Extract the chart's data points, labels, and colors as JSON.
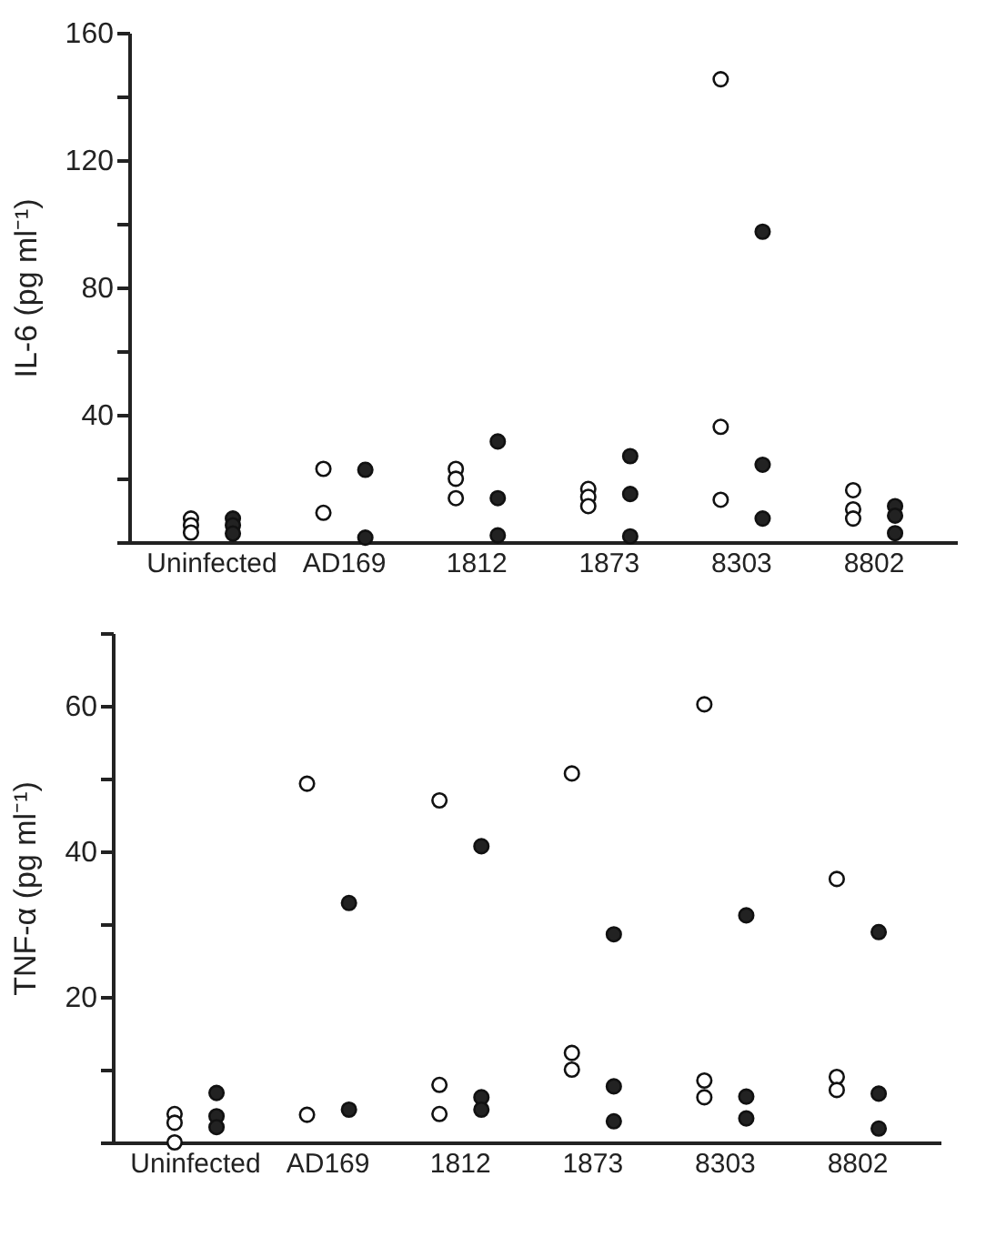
{
  "chart_data": [
    {
      "type": "scatter",
      "ylabel": "IL-6 (pg ml⁻¹)",
      "categories": [
        "Uninfected",
        "AD169",
        "1812",
        "1873",
        "8303",
        "8802"
      ],
      "ylim": [
        0,
        160
      ],
      "yticks": [
        {
          "value": 0,
          "label": null
        },
        {
          "value": 20,
          "label": null
        },
        40,
        {
          "value": 60,
          "label": null
        },
        80,
        {
          "value": 100,
          "label": null
        },
        120,
        {
          "value": 140,
          "label": null
        },
        160
      ],
      "grid": false,
      "legend": false,
      "marker": "circle",
      "series": [
        {
          "color": "#ffffff",
          "values": [
            7.4,
            23,
            23,
            16.7,
            145.4,
            16.3
          ]
        },
        {
          "color": "#ffffff",
          "values": [
            5.3,
            9.2,
            19.9,
            14.2,
            36.2,
            10.3
          ]
        },
        {
          "color": "#ffffff",
          "values": [
            3,
            null,
            13.8,
            11.3,
            13.3,
            7.4
          ]
        },
        {
          "color": "#222222",
          "values": [
            7.4,
            22.7,
            31.6,
            27,
            97.5,
            11.3
          ]
        },
        {
          "color": "#222222",
          "values": [
            5.3,
            1.4,
            13.8,
            15.1,
            24.3,
            8.3
          ]
        },
        {
          "color": "#222222",
          "values": [
            2.7,
            null,
            2.1,
            1.8,
            7.4,
            2.8
          ]
        }
      ]
    },
    {
      "type": "scatter",
      "ylabel": "TNF-α (pg ml⁻¹)",
      "categories": [
        "Uninfected",
        "AD169",
        "1812",
        "1873",
        "8303",
        "8802"
      ],
      "ylim": [
        0,
        70
      ],
      "yticks": [
        {
          "value": 0,
          "label": null
        },
        {
          "value": 10,
          "label": null
        },
        20,
        {
          "value": 30,
          "label": null
        },
        40,
        {
          "value": 50,
          "label": null
        },
        60,
        {
          "value": 70,
          "label": null
        }
      ],
      "grid": false,
      "legend": false,
      "marker": "circle",
      "series": [
        {
          "color": "#ffffff",
          "values": [
            3.9,
            49.3,
            47,
            50.7,
            60.2,
            36.2
          ]
        },
        {
          "color": "#ffffff",
          "values": [
            2.7,
            3.8,
            7.9,
            12.3,
            8.5,
            9
          ]
        },
        {
          "color": "#ffffff",
          "values": [
            0,
            null,
            3.9,
            10,
            6.2,
            7.2
          ]
        },
        {
          "color": "#222222",
          "values": [
            6.8,
            32.9,
            40.7,
            28.6,
            31.2,
            28.9
          ]
        },
        {
          "color": "#222222",
          "values": [
            3.6,
            4.5,
            6.2,
            7.7,
            6.3,
            6.7
          ]
        },
        {
          "color": "#222222",
          "values": [
            2.1,
            null,
            4.5,
            2.9,
            3.3,
            1.9
          ]
        }
      ]
    }
  ]
}
